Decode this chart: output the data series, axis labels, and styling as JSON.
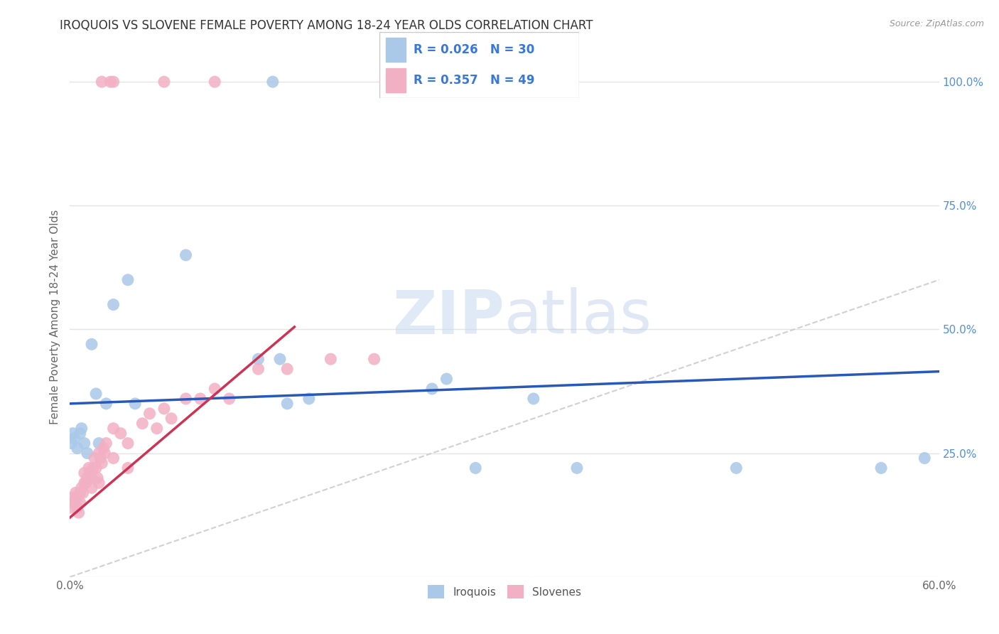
{
  "title": "IROQUOIS VS SLOVENE FEMALE POVERTY AMONG 18-24 YEAR OLDS CORRELATION CHART",
  "source": "Source: ZipAtlas.com",
  "ylabel": "Female Poverty Among 18-24 Year Olds",
  "xlim": [
    0.0,
    0.6
  ],
  "ylim": [
    0.0,
    1.05
  ],
  "xtick_vals": [
    0.0,
    0.1,
    0.2,
    0.3,
    0.4,
    0.5,
    0.6
  ],
  "xtick_labels": [
    "0.0%",
    "",
    "",
    "",
    "",
    "",
    "60.0%"
  ],
  "ytick_vals_right": [
    0.25,
    0.5,
    0.75,
    1.0
  ],
  "ytick_labels_right": [
    "25.0%",
    "50.0%",
    "75.0%",
    "100.0%"
  ],
  "iroquois_color": "#aac8e8",
  "slovenes_color": "#f2b0c4",
  "iroquois_line_color": "#2858b8",
  "slovenes_line_color": "#cc3355",
  "diagonal_color": "#cccccc",
  "background_color": "#ffffff",
  "grid_color": "#e4e4e4",
  "watermark_color": "#dce8f4",
  "legend_text_color": "#3878d8",
  "title_color": "#333333",
  "axis_color": "#666666",
  "iroquois_x": [
    0.001,
    0.002,
    0.003,
    0.005,
    0.007,
    0.008,
    0.01,
    0.012,
    0.015,
    0.018,
    0.02,
    0.025,
    0.03,
    0.04,
    0.045,
    0.08,
    0.13,
    0.145,
    0.15,
    0.165,
    0.25,
    0.26,
    0.28,
    0.32,
    0.35,
    0.46,
    0.56,
    0.59,
    0.14,
    0.26
  ],
  "iroquois_y": [
    0.27,
    0.29,
    0.28,
    0.26,
    0.29,
    0.3,
    0.27,
    0.25,
    0.47,
    0.37,
    0.27,
    0.35,
    0.55,
    0.6,
    0.35,
    0.65,
    0.44,
    0.44,
    0.35,
    0.36,
    0.38,
    0.4,
    0.22,
    0.36,
    0.22,
    0.22,
    0.22,
    0.24,
    1.0,
    1.0
  ],
  "slovenes_x": [
    0.0,
    0.001,
    0.002,
    0.003,
    0.004,
    0.005,
    0.005,
    0.006,
    0.007,
    0.007,
    0.008,
    0.009,
    0.01,
    0.01,
    0.011,
    0.012,
    0.013,
    0.014,
    0.015,
    0.015,
    0.016,
    0.017,
    0.018,
    0.019,
    0.02,
    0.02,
    0.021,
    0.022,
    0.023,
    0.024,
    0.025,
    0.03,
    0.03,
    0.035,
    0.04,
    0.04,
    0.05,
    0.055,
    0.06,
    0.065,
    0.07,
    0.08,
    0.09,
    0.1,
    0.11,
    0.13,
    0.15,
    0.18,
    0.21,
    0.022,
    0.028,
    0.065,
    0.1,
    0.03
  ],
  "slovenes_y": [
    0.15,
    0.14,
    0.16,
    0.15,
    0.17,
    0.14,
    0.16,
    0.13,
    0.17,
    0.15,
    0.18,
    0.17,
    0.19,
    0.21,
    0.19,
    0.2,
    0.22,
    0.21,
    0.2,
    0.18,
    0.22,
    0.24,
    0.22,
    0.2,
    0.25,
    0.19,
    0.24,
    0.23,
    0.26,
    0.25,
    0.27,
    0.24,
    0.3,
    0.29,
    0.27,
    0.22,
    0.31,
    0.33,
    0.3,
    0.34,
    0.32,
    0.36,
    0.36,
    0.38,
    0.36,
    0.42,
    0.42,
    0.44,
    0.44,
    1.0,
    1.0,
    1.0,
    1.0,
    1.0
  ],
  "iroquois_line_x": [
    0.0,
    0.6
  ],
  "iroquois_line_y": [
    0.35,
    0.415
  ],
  "slovenes_line_x": [
    0.0,
    0.155
  ],
  "slovenes_line_y": [
    0.12,
    0.505
  ]
}
